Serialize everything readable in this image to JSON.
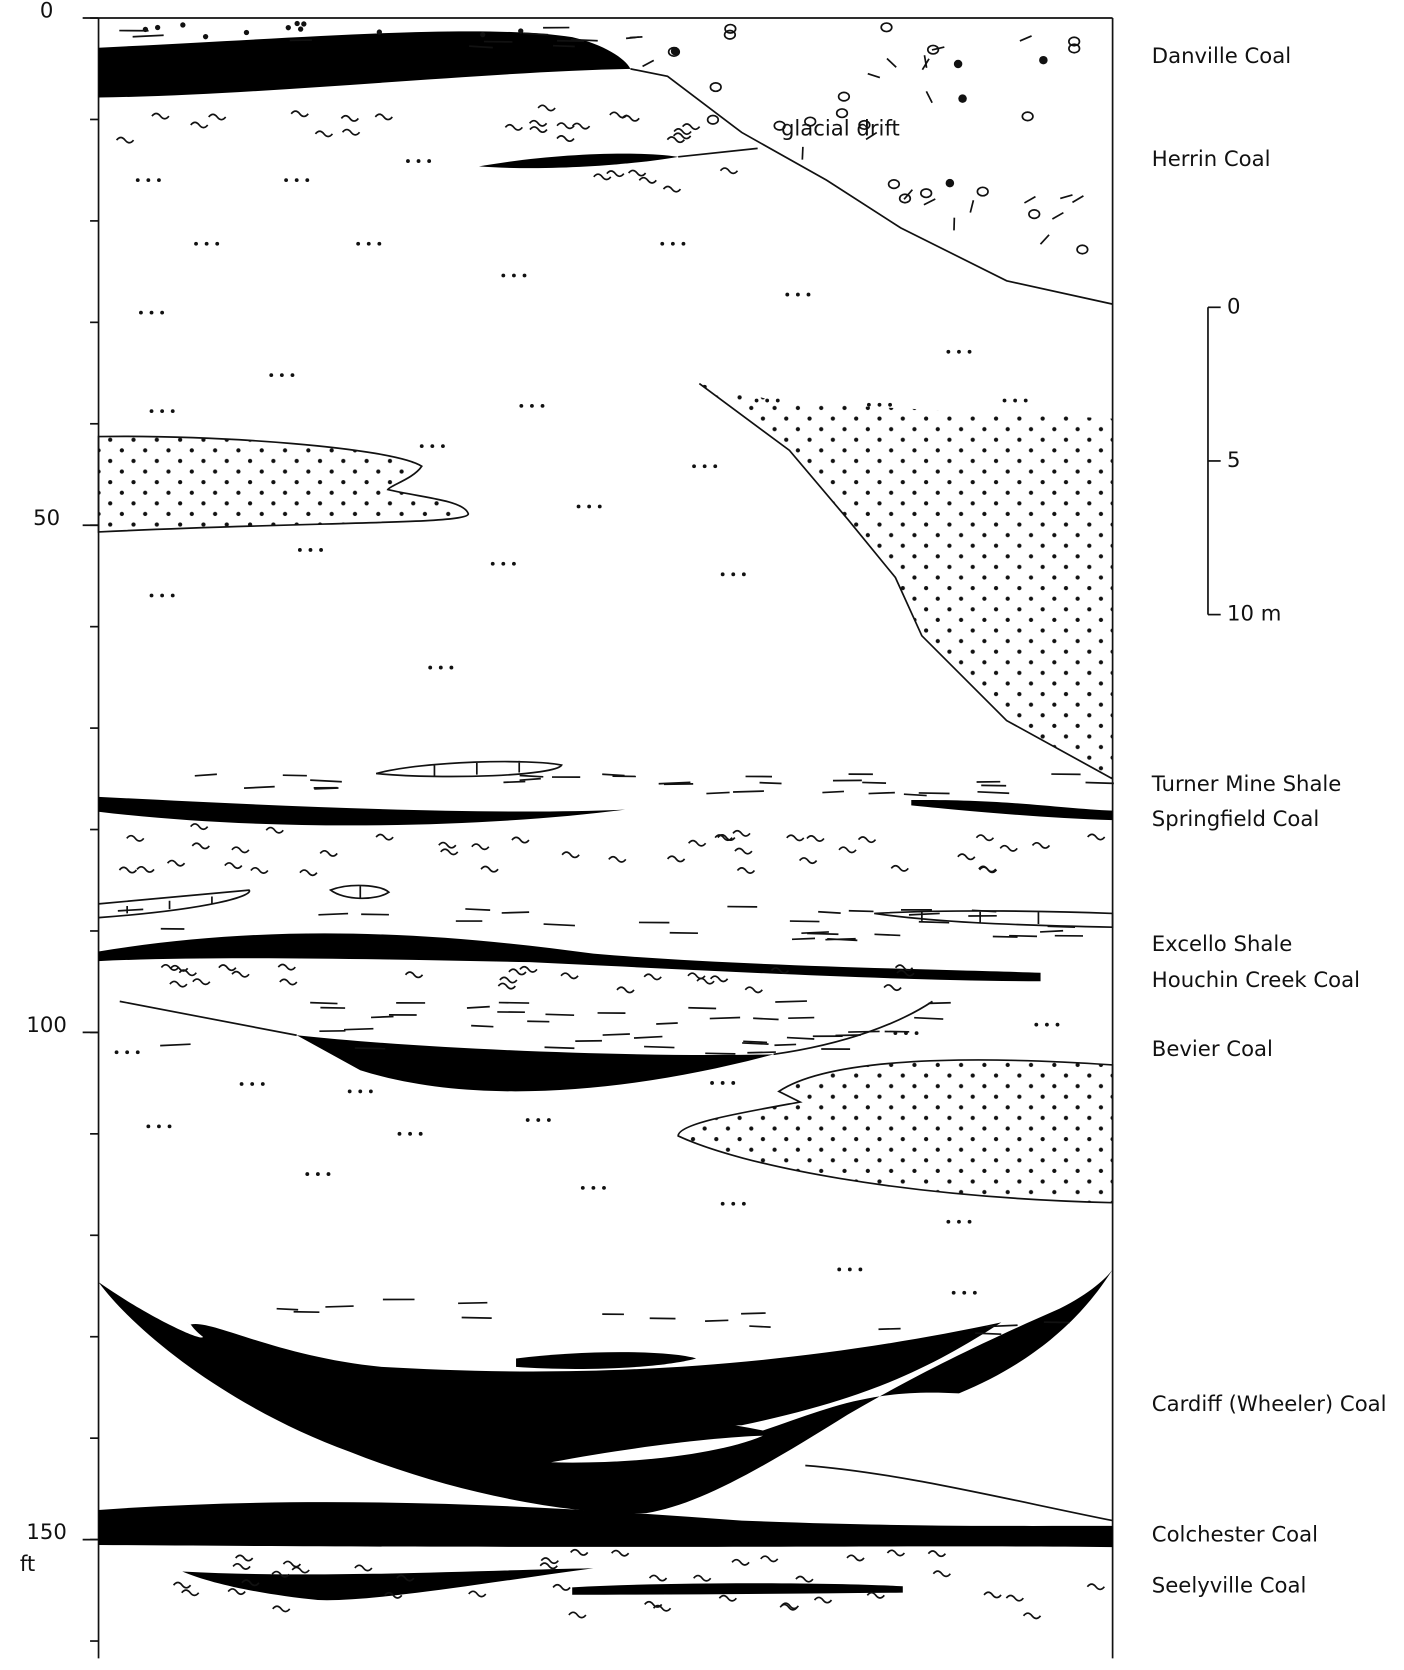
{
  "depth_axis": {
    "ticks": [
      0,
      50,
      100,
      150
    ],
    "unit": "ft"
  },
  "scale_bar": {
    "ticks": [
      0,
      5,
      {
        "value": 10,
        "label": "10 m"
      }
    ]
  },
  "annotation": "glacial drift",
  "units": [
    "Danville Coal",
    "Herrin Coal",
    "Turner Mine Shale",
    "Springfield Coal",
    "Excello Shale",
    "Houchin Creek Coal",
    "Bevier Coal",
    "Cardiff (Wheeler) Coal",
    "Colchester Coal",
    "Seelyville Coal"
  ]
}
